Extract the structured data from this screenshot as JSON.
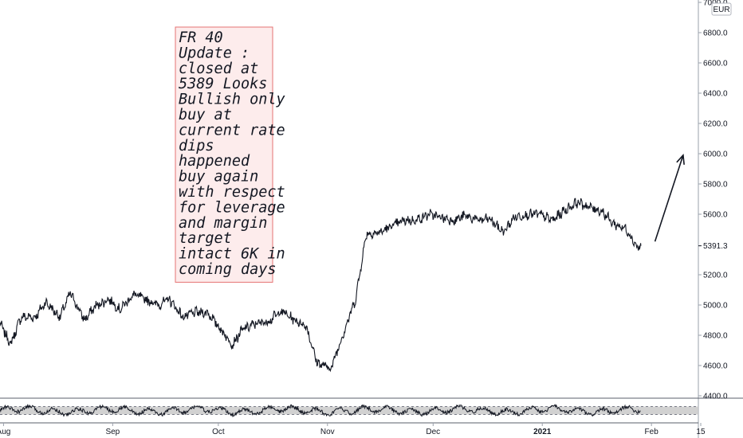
{
  "chart_data": {
    "type": "line",
    "instrument_currency": "EUR",
    "last_price": 5391.3,
    "last_price_label": "5391.3",
    "ylim": [
      4330,
      7010
    ],
    "y_ticks": [
      4400,
      4600,
      4800,
      5000,
      5200,
      5400,
      5600,
      5800,
      6000,
      6200,
      6400,
      6600,
      6800,
      7000
    ],
    "y_tick_labels": [
      "4400.0",
      "4600.0",
      "4800.0",
      "5000.0",
      "5200.0",
      "",
      "5600.0",
      "5800.0",
      "6000.0",
      "6200.0",
      "6400.0",
      "6600.0",
      "6800.0",
      "7000.0"
    ],
    "x_tick_labels": [
      "Aug",
      "Sep",
      "Oct",
      "Nov",
      "Dec",
      "2021",
      "Feb",
      "15"
    ],
    "x_range": [
      "2020-07-31",
      "2021-02-27"
    ],
    "x_tick_dates": [
      "2020-08-01",
      "2020-09-01",
      "2020-10-01",
      "2020-11-01",
      "2020-12-01",
      "2021-01-01",
      "2021-02-01",
      "2021-02-15"
    ],
    "series": [
      {
        "x": [
          "2020-07-31",
          "2020-08-03",
          "2020-08-06",
          "2020-08-10",
          "2020-08-13",
          "2020-08-17",
          "2020-08-20",
          "2020-08-24",
          "2020-08-27",
          "2020-08-31",
          "2020-09-03",
          "2020-09-07",
          "2020-09-10",
          "2020-09-14",
          "2020-09-17",
          "2020-09-21",
          "2020-09-24",
          "2020-09-28",
          "2020-10-01",
          "2020-10-05",
          "2020-10-08",
          "2020-10-12",
          "2020-10-15",
          "2020-10-19",
          "2020-10-22",
          "2020-10-26",
          "2020-10-29",
          "2020-11-02",
          "2020-11-05",
          "2020-11-09",
          "2020-11-12",
          "2020-11-16",
          "2020-11-19",
          "2020-11-23",
          "2020-11-26",
          "2020-11-30",
          "2020-12-03",
          "2020-12-07",
          "2020-12-10",
          "2020-12-14",
          "2020-12-17",
          "2020-12-21",
          "2020-12-24",
          "2020-12-28",
          "2020-12-31",
          "2021-01-04",
          "2021-01-07",
          "2021-01-11",
          "2021-01-14",
          "2021-01-18",
          "2021-01-21",
          "2021-01-25",
          "2021-01-28",
          "2021-01-29"
        ],
        "values": [
          4880,
          4740,
          4920,
          4920,
          5020,
          4920,
          5080,
          4900,
          4990,
          5040,
          4970,
          5070,
          5040,
          5000,
          5040,
          4920,
          4950,
          4950,
          4860,
          4740,
          4840,
          4880,
          4890,
          4960,
          4910,
          4860,
          4620,
          4580,
          4780,
          5040,
          5470,
          5480,
          5520,
          5560,
          5560,
          5600,
          5580,
          5560,
          5590,
          5560,
          5570,
          5480,
          5580,
          5600,
          5600,
          5560,
          5620,
          5680,
          5650,
          5620,
          5540,
          5500,
          5380,
          5391
        ]
      }
    ],
    "indicator_panel": {
      "band_label": "",
      "upper_band": 70,
      "lower_band": 30,
      "ylim": [
        0,
        100
      ]
    },
    "annotation": {
      "lines": [
        "FR 40",
        "Update :",
        "closed at",
        "5389 Looks",
        "Bullish only",
        "buy at",
        "current rate",
        "dips",
        "happened",
        "buy again",
        "with respect",
        "for leverage",
        "and margin",
        "target",
        "intact 6K in",
        "coming days"
      ],
      "border_color": "#e57373",
      "fill_color": "#fdecec"
    },
    "arrow": {
      "from": [
        "2021-02-02",
        5420
      ],
      "to": [
        "2021-02-10",
        5990
      ]
    },
    "grid": false
  }
}
